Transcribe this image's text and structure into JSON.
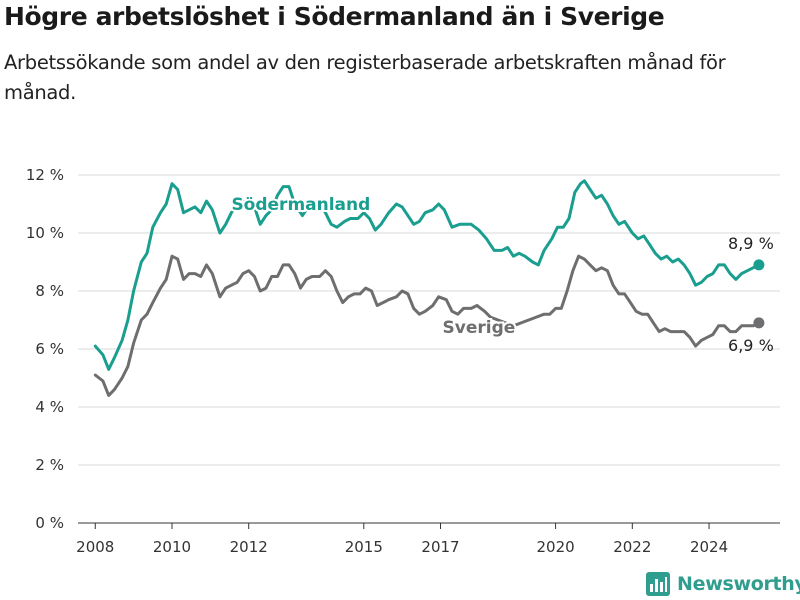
{
  "chart_data": {
    "type": "line",
    "title": "Högre arbetslöshet i Södermanland än i Sverige",
    "subtitle": "Arbetssökande som andel av den registerbaserade arbetskraften månad för månad.",
    "ylim": [
      0,
      12
    ],
    "yticks": [
      0,
      2,
      4,
      6,
      8,
      10,
      12
    ],
    "ytick_labels": [
      "0 %",
      "2 %",
      "4 %",
      "6 %",
      "8 %",
      "10 %",
      "12 %"
    ],
    "xlim": [
      2007.55,
      2025.85
    ],
    "xticks": [
      2008,
      2010,
      2012,
      2015,
      2017,
      2020,
      2022,
      2024
    ],
    "xtick_labels": [
      "2008",
      "2010",
      "2012",
      "2015",
      "2017",
      "2020",
      "2022",
      "2024"
    ],
    "grid": "horizontal",
    "series": [
      {
        "name": "Södermanland",
        "color": "#1a9e8f",
        "end_label": "8,9 %",
        "points": [
          [
            2008.0,
            6.1
          ],
          [
            2008.2,
            5.8
          ],
          [
            2008.35,
            5.3
          ],
          [
            2008.5,
            5.7
          ],
          [
            2008.7,
            6.3
          ],
          [
            2008.85,
            7.0
          ],
          [
            2009.0,
            8.0
          ],
          [
            2009.2,
            9.0
          ],
          [
            2009.35,
            9.3
          ],
          [
            2009.5,
            10.2
          ],
          [
            2009.7,
            10.7
          ],
          [
            2009.85,
            11.0
          ],
          [
            2010.0,
            11.7
          ],
          [
            2010.15,
            11.5
          ],
          [
            2010.3,
            10.7
          ],
          [
            2010.45,
            10.8
          ],
          [
            2010.6,
            10.9
          ],
          [
            2010.75,
            10.7
          ],
          [
            2010.9,
            11.1
          ],
          [
            2011.05,
            10.8
          ],
          [
            2011.25,
            10.0
          ],
          [
            2011.4,
            10.3
          ],
          [
            2011.55,
            10.7
          ],
          [
            2011.7,
            11.0
          ],
          [
            2011.85,
            11.1
          ],
          [
            2012.0,
            11.0
          ],
          [
            2012.15,
            10.9
          ],
          [
            2012.3,
            10.3
          ],
          [
            2012.45,
            10.6
          ],
          [
            2012.6,
            10.8
          ],
          [
            2012.75,
            11.3
          ],
          [
            2012.9,
            11.6
          ],
          [
            2013.05,
            11.6
          ],
          [
            2013.2,
            11.0
          ],
          [
            2013.4,
            10.6
          ],
          [
            2013.55,
            10.9
          ],
          [
            2013.7,
            11.1
          ],
          [
            2013.85,
            11.0
          ],
          [
            2014.0,
            10.7
          ],
          [
            2014.15,
            10.3
          ],
          [
            2014.3,
            10.2
          ],
          [
            2014.5,
            10.4
          ],
          [
            2014.65,
            10.5
          ],
          [
            2014.85,
            10.5
          ],
          [
            2015.0,
            10.7
          ],
          [
            2015.15,
            10.5
          ],
          [
            2015.3,
            10.1
          ],
          [
            2015.45,
            10.3
          ],
          [
            2015.65,
            10.7
          ],
          [
            2015.85,
            11.0
          ],
          [
            2016.0,
            10.9
          ],
          [
            2016.15,
            10.6
          ],
          [
            2016.3,
            10.3
          ],
          [
            2016.45,
            10.4
          ],
          [
            2016.6,
            10.7
          ],
          [
            2016.8,
            10.8
          ],
          [
            2016.95,
            11.0
          ],
          [
            2017.1,
            10.8
          ],
          [
            2017.3,
            10.2
          ],
          [
            2017.5,
            10.3
          ],
          [
            2017.65,
            10.3
          ],
          [
            2017.8,
            10.3
          ],
          [
            2018.0,
            10.1
          ],
          [
            2018.2,
            9.8
          ],
          [
            2018.4,
            9.4
          ],
          [
            2018.6,
            9.4
          ],
          [
            2018.75,
            9.5
          ],
          [
            2018.9,
            9.2
          ],
          [
            2019.05,
            9.3
          ],
          [
            2019.2,
            9.2
          ],
          [
            2019.4,
            9.0
          ],
          [
            2019.55,
            8.9
          ],
          [
            2019.7,
            9.4
          ],
          [
            2019.9,
            9.8
          ],
          [
            2020.05,
            10.2
          ],
          [
            2020.2,
            10.2
          ],
          [
            2020.35,
            10.5
          ],
          [
            2020.5,
            11.4
          ],
          [
            2020.65,
            11.7
          ],
          [
            2020.75,
            11.8
          ],
          [
            2020.9,
            11.5
          ],
          [
            2021.05,
            11.2
          ],
          [
            2021.2,
            11.3
          ],
          [
            2021.35,
            11.0
          ],
          [
            2021.5,
            10.6
          ],
          [
            2021.65,
            10.3
          ],
          [
            2021.8,
            10.4
          ],
          [
            2022.0,
            10.0
          ],
          [
            2022.15,
            9.8
          ],
          [
            2022.3,
            9.9
          ],
          [
            2022.45,
            9.6
          ],
          [
            2022.6,
            9.3
          ],
          [
            2022.75,
            9.1
          ],
          [
            2022.9,
            9.2
          ],
          [
            2023.05,
            9.0
          ],
          [
            2023.2,
            9.1
          ],
          [
            2023.35,
            8.9
          ],
          [
            2023.5,
            8.6
          ],
          [
            2023.65,
            8.2
          ],
          [
            2023.8,
            8.3
          ],
          [
            2023.95,
            8.5
          ],
          [
            2024.1,
            8.6
          ],
          [
            2024.25,
            8.9
          ],
          [
            2024.4,
            8.9
          ],
          [
            2024.55,
            8.6
          ],
          [
            2024.7,
            8.4
          ],
          [
            2024.85,
            8.6
          ],
          [
            2025.0,
            8.7
          ],
          [
            2025.15,
            8.8
          ],
          [
            2025.3,
            8.9
          ]
        ]
      },
      {
        "name": "Sverige",
        "color": "#6e6e70",
        "end_label": "6,9 %",
        "points": [
          [
            2008.0,
            5.1
          ],
          [
            2008.2,
            4.9
          ],
          [
            2008.35,
            4.4
          ],
          [
            2008.5,
            4.6
          ],
          [
            2008.7,
            5.0
          ],
          [
            2008.85,
            5.4
          ],
          [
            2009.0,
            6.2
          ],
          [
            2009.2,
            7.0
          ],
          [
            2009.35,
            7.2
          ],
          [
            2009.5,
            7.6
          ],
          [
            2009.7,
            8.1
          ],
          [
            2009.85,
            8.4
          ],
          [
            2010.0,
            9.2
          ],
          [
            2010.15,
            9.1
          ],
          [
            2010.3,
            8.4
          ],
          [
            2010.45,
            8.6
          ],
          [
            2010.6,
            8.6
          ],
          [
            2010.75,
            8.5
          ],
          [
            2010.9,
            8.9
          ],
          [
            2011.05,
            8.6
          ],
          [
            2011.25,
            7.8
          ],
          [
            2011.4,
            8.1
          ],
          [
            2011.55,
            8.2
          ],
          [
            2011.7,
            8.3
          ],
          [
            2011.85,
            8.6
          ],
          [
            2012.0,
            8.7
          ],
          [
            2012.15,
            8.5
          ],
          [
            2012.3,
            8.0
          ],
          [
            2012.45,
            8.1
          ],
          [
            2012.6,
            8.5
          ],
          [
            2012.75,
            8.5
          ],
          [
            2012.9,
            8.9
          ],
          [
            2013.05,
            8.9
          ],
          [
            2013.2,
            8.6
          ],
          [
            2013.35,
            8.1
          ],
          [
            2013.5,
            8.4
          ],
          [
            2013.65,
            8.5
          ],
          [
            2013.85,
            8.5
          ],
          [
            2014.0,
            8.7
          ],
          [
            2014.15,
            8.5
          ],
          [
            2014.3,
            8.0
          ],
          [
            2014.45,
            7.6
          ],
          [
            2014.6,
            7.8
          ],
          [
            2014.75,
            7.9
          ],
          [
            2014.9,
            7.9
          ],
          [
            2015.05,
            8.1
          ],
          [
            2015.2,
            8.0
          ],
          [
            2015.35,
            7.5
          ],
          [
            2015.5,
            7.6
          ],
          [
            2015.65,
            7.7
          ],
          [
            2015.85,
            7.8
          ],
          [
            2016.0,
            8.0
          ],
          [
            2016.15,
            7.9
          ],
          [
            2016.3,
            7.4
          ],
          [
            2016.45,
            7.2
          ],
          [
            2016.6,
            7.3
          ],
          [
            2016.8,
            7.5
          ],
          [
            2016.95,
            7.8
          ],
          [
            2017.15,
            7.7
          ],
          [
            2017.3,
            7.3
          ],
          [
            2017.45,
            7.2
          ],
          [
            2017.6,
            7.4
          ],
          [
            2017.8,
            7.4
          ],
          [
            2017.95,
            7.5
          ],
          [
            2018.15,
            7.3
          ],
          [
            2018.3,
            7.1
          ],
          [
            2018.5,
            7.0
          ],
          [
            2018.7,
            6.9
          ],
          [
            2018.9,
            6.8
          ],
          [
            2019.1,
            6.9
          ],
          [
            2019.3,
            7.0
          ],
          [
            2019.5,
            7.1
          ],
          [
            2019.7,
            7.2
          ],
          [
            2019.85,
            7.2
          ],
          [
            2020.0,
            7.4
          ],
          [
            2020.15,
            7.4
          ],
          [
            2020.3,
            8.0
          ],
          [
            2020.45,
            8.7
          ],
          [
            2020.6,
            9.2
          ],
          [
            2020.75,
            9.1
          ],
          [
            2020.9,
            8.9
          ],
          [
            2021.05,
            8.7
          ],
          [
            2021.2,
            8.8
          ],
          [
            2021.35,
            8.7
          ],
          [
            2021.5,
            8.2
          ],
          [
            2021.65,
            7.9
          ],
          [
            2021.8,
            7.9
          ],
          [
            2021.95,
            7.6
          ],
          [
            2022.1,
            7.3
          ],
          [
            2022.25,
            7.2
          ],
          [
            2022.4,
            7.2
          ],
          [
            2022.55,
            6.9
          ],
          [
            2022.7,
            6.6
          ],
          [
            2022.85,
            6.7
          ],
          [
            2023.0,
            6.6
          ],
          [
            2023.15,
            6.6
          ],
          [
            2023.35,
            6.6
          ],
          [
            2023.5,
            6.4
          ],
          [
            2023.65,
            6.1
          ],
          [
            2023.8,
            6.3
          ],
          [
            2023.95,
            6.4
          ],
          [
            2024.1,
            6.5
          ],
          [
            2024.25,
            6.8
          ],
          [
            2024.4,
            6.8
          ],
          [
            2024.55,
            6.6
          ],
          [
            2024.7,
            6.6
          ],
          [
            2024.85,
            6.8
          ],
          [
            2025.0,
            6.8
          ],
          [
            2025.15,
            6.8
          ],
          [
            2025.3,
            6.9
          ]
        ]
      }
    ]
  },
  "branding": {
    "logo_text": "Newsworthy",
    "logo_color": "#2f9e8f"
  }
}
